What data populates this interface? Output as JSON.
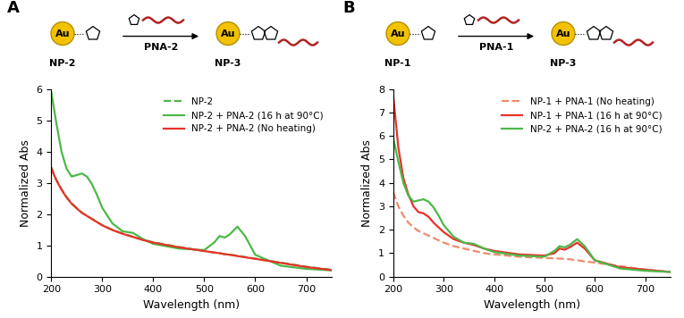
{
  "chart_data": [
    {
      "type": "line",
      "panel": "A",
      "scheme": {
        "particle": "Au",
        "reactant": "NP-2",
        "reagent": "PNA-2",
        "product": "NP-3"
      },
      "x_label": "Wavelength (nm)",
      "y_label": "Normalized Abs",
      "xlim": [
        200,
        750
      ],
      "xticks": [
        200,
        300,
        400,
        500,
        600,
        700
      ],
      "ylim": [
        0,
        6
      ],
      "yticks": [
        0,
        1,
        2,
        3,
        4,
        5,
        6
      ],
      "legend": "upper right",
      "x": [
        200,
        210,
        220,
        230,
        240,
        250,
        260,
        270,
        280,
        290,
        300,
        320,
        340,
        360,
        380,
        400,
        450,
        500,
        520,
        530,
        540,
        550,
        565,
        580,
        600,
        650,
        700,
        750
      ],
      "series": [
        {
          "name": "NP-2",
          "color": "#4cb848",
          "line_style": "dashed",
          "values": [
            3.5,
            3.1,
            2.8,
            2.55,
            2.35,
            2.2,
            2.05,
            1.95,
            1.85,
            1.75,
            1.65,
            1.5,
            1.38,
            1.28,
            1.18,
            1.1,
            0.95,
            0.82,
            0.77,
            0.75,
            0.72,
            0.7,
            0.67,
            0.63,
            0.58,
            0.45,
            0.32,
            0.22
          ]
        },
        {
          "name": "NP-2 + PNA-2 (16 h at 90°C)",
          "color": "#4cb848",
          "line_style": "solid",
          "values": [
            5.9,
            4.9,
            4.0,
            3.45,
            3.2,
            3.25,
            3.3,
            3.2,
            2.95,
            2.6,
            2.2,
            1.7,
            1.45,
            1.4,
            1.2,
            1.05,
            0.9,
            0.85,
            1.1,
            1.3,
            1.25,
            1.35,
            1.6,
            1.3,
            0.7,
            0.35,
            0.25,
            0.2
          ]
        },
        {
          "name": "NP-2 + PNA-2 (No heating)",
          "color": "#e8312a",
          "line_style": "solid",
          "values": [
            3.45,
            3.08,
            2.78,
            2.53,
            2.33,
            2.18,
            2.04,
            1.94,
            1.84,
            1.74,
            1.64,
            1.49,
            1.37,
            1.27,
            1.17,
            1.09,
            0.94,
            0.82,
            0.77,
            0.75,
            0.72,
            0.7,
            0.66,
            0.62,
            0.57,
            0.44,
            0.31,
            0.21
          ]
        }
      ]
    },
    {
      "type": "line",
      "panel": "B",
      "scheme": {
        "particle": "Au",
        "reactant": "NP-1",
        "reagent": "PNA-1",
        "product": "NP-3"
      },
      "x_label": "Wavelength (nm)",
      "y_label": "Normalized Abs",
      "xlim": [
        200,
        750
      ],
      "xticks": [
        200,
        300,
        400,
        500,
        600,
        700
      ],
      "ylim": [
        0,
        8
      ],
      "yticks": [
        0,
        1,
        2,
        3,
        4,
        5,
        6,
        7,
        8
      ],
      "legend": "upper right",
      "x": [
        200,
        210,
        220,
        230,
        240,
        250,
        260,
        270,
        280,
        290,
        300,
        320,
        340,
        360,
        380,
        400,
        450,
        500,
        520,
        530,
        540,
        550,
        565,
        580,
        600,
        650,
        700,
        750
      ],
      "series": [
        {
          "name": "NP-1 + PNA-1 (No heating)",
          "color": "#f08a6c",
          "line_style": "dashed",
          "values": [
            3.6,
            3.0,
            2.6,
            2.3,
            2.1,
            1.95,
            1.85,
            1.75,
            1.65,
            1.55,
            1.45,
            1.3,
            1.2,
            1.1,
            1.0,
            0.95,
            0.85,
            0.8,
            0.78,
            0.77,
            0.76,
            0.74,
            0.7,
            0.65,
            0.6,
            0.45,
            0.3,
            0.2
          ]
        },
        {
          "name": "NP-1 + PNA-1 (16 h at 90°C)",
          "color": "#e8312a",
          "line_style": "solid",
          "values": [
            7.7,
            5.5,
            4.2,
            3.5,
            3.0,
            2.75,
            2.7,
            2.55,
            2.3,
            2.1,
            1.9,
            1.6,
            1.45,
            1.35,
            1.2,
            1.1,
            0.95,
            0.9,
            1.0,
            1.2,
            1.15,
            1.25,
            1.45,
            1.2,
            0.7,
            0.4,
            0.3,
            0.2
          ]
        },
        {
          "name": "NP-2 + PNA-2 (16 h at 90°C)",
          "color": "#4cb848",
          "line_style": "solid",
          "values": [
            5.9,
            4.9,
            4.0,
            3.45,
            3.2,
            3.25,
            3.3,
            3.2,
            2.95,
            2.6,
            2.2,
            1.7,
            1.45,
            1.4,
            1.2,
            1.05,
            0.9,
            0.85,
            1.1,
            1.3,
            1.25,
            1.35,
            1.6,
            1.3,
            0.7,
            0.35,
            0.25,
            0.2
          ]
        }
      ]
    }
  ]
}
